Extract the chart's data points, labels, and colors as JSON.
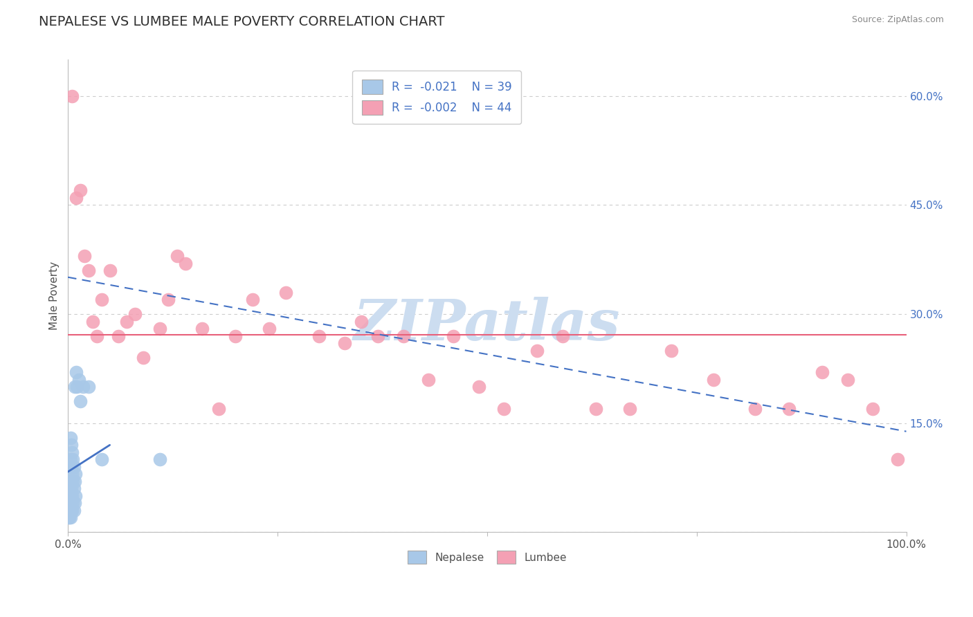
{
  "title": "NEPALESE VS LUMBEE MALE POVERTY CORRELATION CHART",
  "source": "Source: ZipAtlas.com",
  "ylabel": "Male Poverty",
  "xlim": [
    0,
    1
  ],
  "ylim": [
    0,
    0.65
  ],
  "yticks": [
    0.0,
    0.15,
    0.3,
    0.45,
    0.6
  ],
  "ytick_labels_right": [
    "",
    "15.0%",
    "30.0%",
    "45.0%",
    "60.0%"
  ],
  "xticks": [
    0,
    0.25,
    0.5,
    0.75,
    1.0
  ],
  "xtick_labels": [
    "0.0%",
    "",
    "",
    "",
    "100.0%"
  ],
  "nepalese_R": -0.021,
  "nepalese_N": 39,
  "lumbee_R": -0.002,
  "lumbee_N": 44,
  "nepalese_color": "#a8c8e8",
  "lumbee_color": "#f4a0b4",
  "nepalese_line_color": "#4472c4",
  "lumbee_line_color": "#e8607a",
  "lumbee_hline_y": 0.272,
  "watermark": "ZIPatlas",
  "watermark_color": "#ccddf0",
  "background_color": "#ffffff",
  "title_color": "#303030",
  "title_fontsize": 14,
  "nepalese_x": [
    0.001,
    0.001,
    0.001,
    0.002,
    0.002,
    0.002,
    0.002,
    0.003,
    0.003,
    0.003,
    0.003,
    0.003,
    0.004,
    0.004,
    0.004,
    0.004,
    0.005,
    0.005,
    0.005,
    0.005,
    0.006,
    0.006,
    0.006,
    0.007,
    0.007,
    0.007,
    0.008,
    0.008,
    0.008,
    0.009,
    0.009,
    0.01,
    0.011,
    0.013,
    0.015,
    0.018,
    0.025,
    0.04,
    0.11
  ],
  "nepalese_y": [
    0.02,
    0.04,
    0.06,
    0.02,
    0.04,
    0.07,
    0.09,
    0.02,
    0.05,
    0.07,
    0.1,
    0.13,
    0.03,
    0.06,
    0.09,
    0.12,
    0.03,
    0.05,
    0.08,
    0.11,
    0.04,
    0.07,
    0.1,
    0.03,
    0.06,
    0.09,
    0.04,
    0.07,
    0.2,
    0.05,
    0.08,
    0.22,
    0.2,
    0.21,
    0.18,
    0.2,
    0.2,
    0.1,
    0.1
  ],
  "lumbee_x": [
    0.005,
    0.01,
    0.015,
    0.02,
    0.025,
    0.03,
    0.035,
    0.04,
    0.05,
    0.06,
    0.07,
    0.08,
    0.09,
    0.11,
    0.12,
    0.13,
    0.14,
    0.16,
    0.18,
    0.2,
    0.22,
    0.24,
    0.26,
    0.3,
    0.33,
    0.35,
    0.37,
    0.4,
    0.43,
    0.46,
    0.49,
    0.52,
    0.56,
    0.59,
    0.63,
    0.67,
    0.72,
    0.77,
    0.82,
    0.86,
    0.9,
    0.93,
    0.96,
    0.99
  ],
  "lumbee_y": [
    0.6,
    0.46,
    0.47,
    0.38,
    0.36,
    0.29,
    0.27,
    0.32,
    0.36,
    0.27,
    0.29,
    0.3,
    0.24,
    0.28,
    0.32,
    0.38,
    0.37,
    0.28,
    0.17,
    0.27,
    0.32,
    0.28,
    0.33,
    0.27,
    0.26,
    0.29,
    0.27,
    0.27,
    0.21,
    0.27,
    0.2,
    0.17,
    0.25,
    0.27,
    0.17,
    0.17,
    0.25,
    0.21,
    0.17,
    0.17,
    0.22,
    0.21,
    0.17,
    0.1
  ]
}
